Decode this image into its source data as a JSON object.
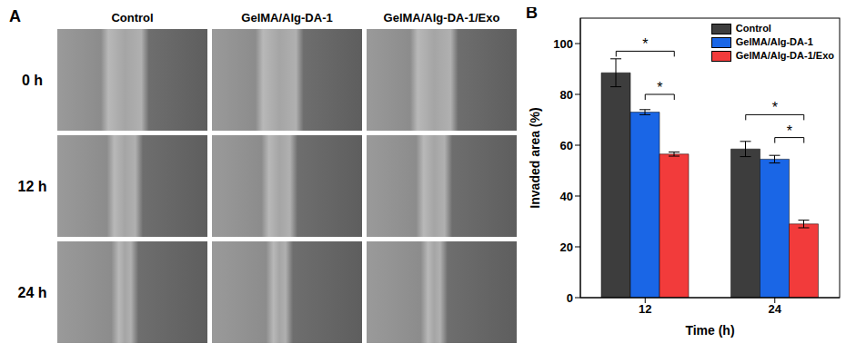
{
  "panel_a": {
    "label": "A",
    "columns": [
      "Control",
      "GelMA/Alg-DA-1",
      "GelMA/Alg-DA-1/Exo"
    ],
    "rows": [
      "0 h",
      "12 h",
      "24 h"
    ]
  },
  "chart_data": {
    "type": "bar",
    "panel_label": "B",
    "x_label": "Time (h)",
    "y_label": "Invaded area (%)",
    "categories": [
      "12",
      "24"
    ],
    "series": [
      {
        "name": "Control",
        "color": "#3d3d3d",
        "values": [
          88.5,
          58.5
        ],
        "errors": [
          5.5,
          3
        ]
      },
      {
        "name": "GelMA/Alg-DA-1",
        "color": "#1a66e6",
        "values": [
          73,
          54.5
        ],
        "errors": [
          1,
          1.5
        ]
      },
      {
        "name": "GelMA/Alg-DA-1/Exo",
        "color": "#f23b3b",
        "values": [
          56.5,
          29
        ],
        "errors": [
          0.8,
          1.5
        ]
      }
    ],
    "ylim": [
      0,
      110
    ],
    "yticks": [
      0,
      20,
      40,
      60,
      80,
      100
    ],
    "legend": "upper right",
    "annotations": [
      {
        "text": "*",
        "category": "12",
        "from": "Control",
        "to": "GelMA/Alg-DA-1/Exo",
        "y": 97
      },
      {
        "text": "*",
        "category": "12",
        "from": "GelMA/Alg-DA-1",
        "to": "GelMA/Alg-DA-1/Exo",
        "y": 80
      },
      {
        "text": "*",
        "category": "24",
        "from": "Control",
        "to": "GelMA/Alg-DA-1/Exo",
        "y": 72
      },
      {
        "text": "*",
        "category": "24",
        "from": "GelMA/Alg-DA-1",
        "to": "GelMA/Alg-DA-1/Exo",
        "y": 63
      }
    ]
  }
}
